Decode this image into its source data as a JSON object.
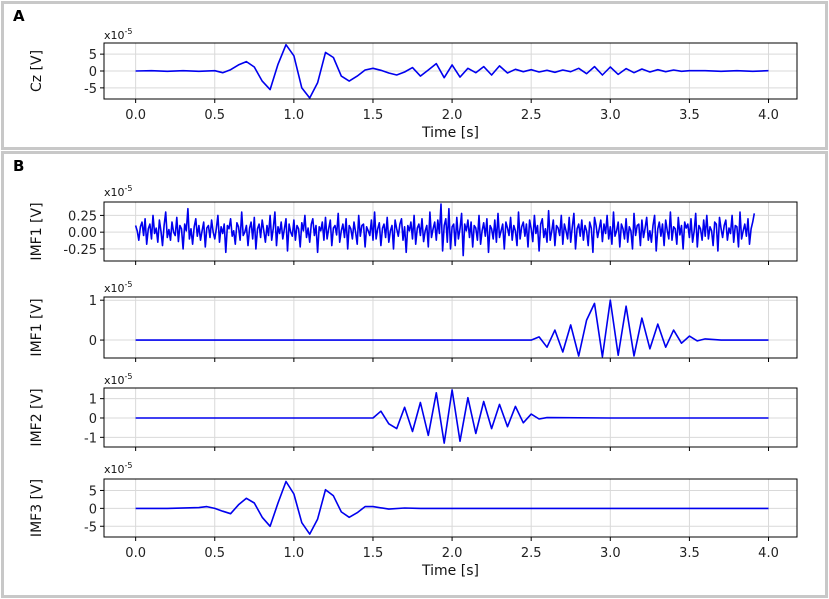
{
  "panels": [
    {
      "letter": "A"
    },
    {
      "letter": "B"
    }
  ],
  "colors": {
    "trace": "#0000ee",
    "grid": "#d9d9d9",
    "axis": "#000000",
    "panel_border": "#c8c8c8"
  },
  "chart_data": [
    {
      "type": "line",
      "panel": "A",
      "ylabel": "Cz [V]",
      "multiplier": "x10-5",
      "xlabel": "Time [s]",
      "xlim": [
        -0.2,
        4.18
      ],
      "ylim": [
        -8.3,
        8.3
      ],
      "xticks": [
        "0.0",
        "0.5",
        "1.0",
        "1.5",
        "2.0",
        "2.5",
        "3.0",
        "3.5",
        "4.0"
      ],
      "yticks": [
        {
          "v": 5,
          "label": "5"
        },
        {
          "v": 0,
          "label": "0"
        },
        {
          "v": -5,
          "label": "-5"
        }
      ],
      "grid": true,
      "series": [
        {
          "x": [
            0,
            0.1,
            0.2,
            0.3,
            0.4,
            0.5,
            0.55,
            0.6,
            0.65,
            0.7,
            0.75,
            0.8,
            0.85,
            0.9,
            0.95,
            1.0,
            1.05,
            1.1,
            1.15,
            1.2,
            1.25,
            1.3,
            1.35,
            1.4,
            1.45,
            1.5,
            1.55,
            1.6,
            1.65,
            1.7,
            1.75,
            1.8,
            1.85,
            1.9,
            1.95,
            2.0,
            2.05,
            2.1,
            2.15,
            2.2,
            2.25,
            2.3,
            2.35,
            2.4,
            2.45,
            2.5,
            2.55,
            2.6,
            2.65,
            2.7,
            2.75,
            2.8,
            2.85,
            2.9,
            2.95,
            3.0,
            3.05,
            3.1,
            3.15,
            3.2,
            3.25,
            3.3,
            3.35,
            3.4,
            3.45,
            3.5,
            3.6,
            3.7,
            3.8,
            3.9,
            4.0
          ],
          "values": [
            0,
            0.1,
            -0.1,
            0.1,
            -0.1,
            0.1,
            -0.5,
            0.4,
            1.8,
            2.8,
            1.2,
            -3.0,
            -5.5,
            2.0,
            7.8,
            4.5,
            -5.0,
            -8.0,
            -3.5,
            5.5,
            4.0,
            -1.5,
            -3.0,
            -1.5,
            0.3,
            0.8,
            0.2,
            -0.6,
            -1.2,
            -0.3,
            1.0,
            -1.5,
            0.3,
            2.2,
            -2.0,
            1.8,
            -1.8,
            0.8,
            -0.5,
            1.3,
            -1.2,
            1.5,
            -0.6,
            0.5,
            -0.2,
            0.4,
            -0.3,
            0.2,
            -0.4,
            0.3,
            -0.2,
            0.8,
            -0.8,
            1.3,
            -1.2,
            1.2,
            -1.0,
            0.7,
            -0.5,
            0.6,
            -0.3,
            0.4,
            -0.2,
            0.3,
            -0.1,
            0.1,
            0.1,
            -0.1,
            0.1,
            -0.1,
            0.1
          ]
        }
      ]
    },
    {
      "type": "line",
      "panel": "B",
      "ylabel": "IMF1 [V]",
      "multiplier": "x10-5",
      "xlim": [
        -0.2,
        4.18
      ],
      "ylim": [
        -0.43,
        0.45
      ],
      "yticks": [
        {
          "v": 0.25,
          "label": "0.25"
        },
        {
          "v": 0,
          "label": "0.00"
        },
        {
          "v": -0.25,
          "label": "-0.25"
        }
      ],
      "grid": true,
      "series": [
        {
          "x_start": 0,
          "x_step": 0.01,
          "values": [
            0.1,
            0.02,
            -0.12,
            0.08,
            0.15,
            -0.05,
            0.2,
            -0.18,
            0.05,
            0.12,
            -0.1,
            0.25,
            -0.02,
            0.06,
            -0.15,
            0.18,
            0.01,
            -0.2,
            0.1,
            0.3,
            -0.08,
            0.04,
            -0.12,
            0.15,
            0.0,
            -0.05,
            0.22,
            -0.14,
            0.1,
            0.05,
            -0.25,
            0.12,
            0.02,
            0.35,
            -0.1,
            0.05,
            -0.18,
            0.08,
            0.2,
            -0.06,
            0.1,
            -0.12,
            0.02,
            0.15,
            -0.22,
            0.06,
            0.1,
            -0.08,
            0.18,
            0.0,
            -0.1,
            0.05,
            0.25,
            -0.15,
            0.08,
            -0.02,
            0.12,
            -0.3,
            0.1,
            0.05,
            0.2,
            -0.06,
            0.02,
            -0.18,
            0.14,
            0.08,
            -0.12,
            0.3,
            -0.05,
            0.0,
            0.1,
            -0.2,
            0.06,
            0.15,
            -0.1,
            0.22,
            -0.25,
            0.05,
            0.12,
            -0.08,
            0.18,
            0.02,
            -0.15,
            0.1,
            -0.05,
            0.25,
            -0.12,
            0.06,
            0.3,
            -0.2,
            0.08,
            -0.02,
            0.15,
            -0.1,
            0.05,
            0.2,
            -0.28,
            0.12,
            0.0,
            -0.06,
            0.18,
            -0.12,
            0.1,
            0.05,
            -0.22,
            0.14,
            0.02,
            0.25,
            -0.08,
            0.06,
            -0.15,
            0.12,
            0.2,
            -0.05,
            0.1,
            -0.3,
            0.08,
            0.02,
            0.15,
            -0.12,
            0.22,
            -0.1,
            0.05,
            0.18,
            -0.2,
            0.06,
            0.1,
            -0.04,
            0.28,
            -0.15,
            0.02,
            0.12,
            -0.08,
            0.2,
            -0.25,
            0.1,
            0.05,
            -0.1,
            0.15,
            0.0,
            -0.18,
            0.25,
            -0.06,
            0.1,
            0.12,
            -0.22,
            0.08,
            0.02,
            -0.05,
            0.18,
            -0.12,
            0.3,
            -0.1,
            0.05,
            0.14,
            -0.2,
            0.06,
            0.12,
            -0.08,
            0.22,
            -0.15,
            0.02,
            0.1,
            -0.25,
            0.18,
            0.05,
            -0.06,
            0.12,
            0.2,
            -0.12,
            0.08,
            -0.3,
            0.1,
            0.02,
            0.15,
            -0.1,
            0.25,
            -0.18,
            0.06,
            0.12,
            -0.05,
            0.2,
            -0.14,
            0.02,
            0.1,
            -0.22,
            0.3,
            -0.08,
            0.05,
            0.15,
            -0.12,
            0.18,
            -0.02,
            0.42,
            -0.28,
            0.1,
            0.2,
            -0.15,
            0.35,
            -0.25,
            0.08,
            0.12,
            -0.2,
            0.22,
            -0.1,
            0.05,
            0.28,
            -0.35,
            0.12,
            0.02,
            0.18,
            -0.08,
            0.15,
            -0.22,
            0.1,
            0.06,
            -0.12,
            0.25,
            -0.18,
            0.02,
            0.14,
            -0.06,
            0.2,
            -0.3,
            0.1,
            0.05,
            -0.1,
            0.18,
            -0.15,
            0.28,
            -0.08,
            0.02,
            0.12,
            -0.25,
            0.15,
            0.06,
            -0.05,
            0.22,
            -0.12,
            0.1,
            0.02,
            -0.2,
            0.3,
            -0.1,
            0.08,
            0.15,
            -0.06,
            0.12,
            -0.22,
            0.18,
            0.05,
            -0.14,
            0.25,
            -0.02,
            0.1,
            -0.28,
            0.12,
            0.2,
            -0.08,
            0.05,
            -0.15,
            0.32,
            -0.12,
            0.02,
            0.18,
            -0.2,
            0.1,
            0.06,
            -0.05,
            0.25,
            -0.18,
            0.12,
            0.02,
            -0.1,
            0.22,
            -0.15,
            0.08,
            0.28,
            -0.25,
            0.05,
            0.12,
            -0.06,
            0.18,
            -0.12,
            0.1,
            0.02,
            -0.2,
            0.15,
            0.06,
            -0.3,
            0.22,
            0.1,
            -0.08,
            0.05,
            0.18,
            -0.14,
            0.12,
            -0.02,
            0.25,
            -0.1,
            0.08,
            -0.18,
            0.3,
            -0.06,
            0.02,
            0.15,
            -0.22,
            0.12,
            0.05,
            -0.1,
            0.2,
            -0.15,
            0.08,
            0.02,
            -0.25,
            0.28,
            -0.05,
            0.1,
            0.12,
            -0.2,
            0.18,
            -0.08,
            0.06,
            0.22,
            -0.12,
            0.02,
            -0.15,
            0.1,
            0.25,
            -0.28,
            0.05,
            0.15,
            -0.06,
            0.12,
            -0.2,
            0.18,
            0.02,
            -0.1,
            0.3,
            -0.12,
            0.08,
            0.05,
            -0.18,
            0.22,
            -0.04,
            0.1,
            -0.25,
            0.15,
            0.06,
            0.12,
            -0.08,
            0.2,
            -0.15,
            0.02,
            0.28,
            -0.22,
            0.1,
            0.05,
            -0.12,
            0.18,
            -0.06,
            0.25,
            -0.1,
            0.08,
            0.02,
            -0.2,
            0.15,
            0.12,
            -0.28,
            0.22,
            0.05,
            -0.08,
            0.1,
            0.18,
            -0.12,
            0.06,
            -0.02,
            0.25,
            -0.15,
            0.1,
            0.08,
            -0.22,
            0.3,
            -0.1,
            0.02,
            0.12,
            -0.06,
            0.2,
            -0.18,
            0.05,
            0.15,
            0.28
          ]
        }
      ]
    },
    {
      "type": "line",
      "panel": "B",
      "ylabel": "IMF1 [V]",
      "multiplier": "x10-5",
      "xlim": [
        -0.2,
        4.18
      ],
      "ylim": [
        -0.45,
        1.08
      ],
      "yticks": [
        {
          "v": 1,
          "label": "1"
        },
        {
          "v": 0,
          "label": "0"
        }
      ],
      "grid": true,
      "series": [
        {
          "x": [
            0,
            0.5,
            1.0,
            1.5,
            2.0,
            2.5,
            2.55,
            2.6,
            2.65,
            2.7,
            2.75,
            2.8,
            2.85,
            2.9,
            2.95,
            3.0,
            3.05,
            3.1,
            3.15,
            3.2,
            3.25,
            3.3,
            3.35,
            3.4,
            3.45,
            3.5,
            3.55,
            3.6,
            3.7,
            3.8,
            3.9,
            4.0
          ],
          "values": [
            0,
            0,
            0,
            0,
            0,
            0,
            0.08,
            -0.18,
            0.25,
            -0.3,
            0.38,
            -0.4,
            0.5,
            0.92,
            -0.42,
            1.0,
            -0.38,
            0.85,
            -0.4,
            0.55,
            -0.22,
            0.4,
            -0.18,
            0.25,
            -0.08,
            0.1,
            -0.02,
            0.03,
            0,
            0,
            0,
            0
          ]
        }
      ]
    },
    {
      "type": "line",
      "panel": "B",
      "ylabel": "IMF2 [V]",
      "multiplier": "x10-5",
      "xlim": [
        -0.2,
        4.18
      ],
      "ylim": [
        -1.5,
        1.55
      ],
      "yticks": [
        {
          "v": 1,
          "label": "1"
        },
        {
          "v": 0,
          "label": "0"
        },
        {
          "v": -1,
          "label": "-1"
        }
      ],
      "grid": true,
      "series": [
        {
          "x": [
            0,
            0.5,
            1.0,
            1.5,
            1.55,
            1.6,
            1.65,
            1.7,
            1.75,
            1.8,
            1.85,
            1.9,
            1.95,
            2.0,
            2.05,
            2.1,
            2.15,
            2.2,
            2.25,
            2.3,
            2.35,
            2.4,
            2.45,
            2.5,
            2.55,
            2.6,
            3.0,
            3.5,
            4.0
          ],
          "values": [
            0,
            0,
            0,
            0,
            0.35,
            -0.3,
            -0.55,
            0.55,
            -0.7,
            0.8,
            -0.9,
            1.3,
            -1.3,
            1.45,
            -1.2,
            1.05,
            -0.8,
            0.85,
            -0.55,
            0.7,
            -0.45,
            0.6,
            -0.25,
            0.2,
            -0.05,
            0.02,
            0,
            0,
            0
          ]
        }
      ]
    },
    {
      "type": "line",
      "panel": "B",
      "ylabel": "IMF3 [V]",
      "multiplier": "x10-5",
      "xlabel": "Time [s]",
      "xlim": [
        -0.2,
        4.18
      ],
      "ylim": [
        -8.0,
        8.2
      ],
      "xticks": [
        "0.0",
        "0.5",
        "1.0",
        "1.5",
        "2.0",
        "2.5",
        "3.0",
        "3.5",
        "4.0"
      ],
      "yticks": [
        {
          "v": 5,
          "label": "5"
        },
        {
          "v": 0,
          "label": "0"
        },
        {
          "v": -5,
          "label": "-5"
        }
      ],
      "grid": true,
      "series": [
        {
          "x": [
            0,
            0.2,
            0.4,
            0.45,
            0.5,
            0.55,
            0.6,
            0.65,
            0.7,
            0.75,
            0.8,
            0.85,
            0.9,
            0.95,
            1.0,
            1.05,
            1.1,
            1.15,
            1.2,
            1.25,
            1.3,
            1.35,
            1.4,
            1.45,
            1.5,
            1.6,
            1.7,
            1.8,
            2.0,
            2.5,
            3.0,
            3.5,
            4.0
          ],
          "values": [
            0,
            0,
            0.2,
            0.5,
            0,
            -0.8,
            -1.5,
            1.0,
            2.8,
            1.5,
            -2.5,
            -5.0,
            1.5,
            7.5,
            4.0,
            -4.0,
            -7.2,
            -3.0,
            5.2,
            3.5,
            -1.0,
            -2.5,
            -1.2,
            0.5,
            0.5,
            -0.2,
            0.1,
            0,
            0,
            0,
            0,
            0,
            0
          ]
        }
      ]
    }
  ]
}
